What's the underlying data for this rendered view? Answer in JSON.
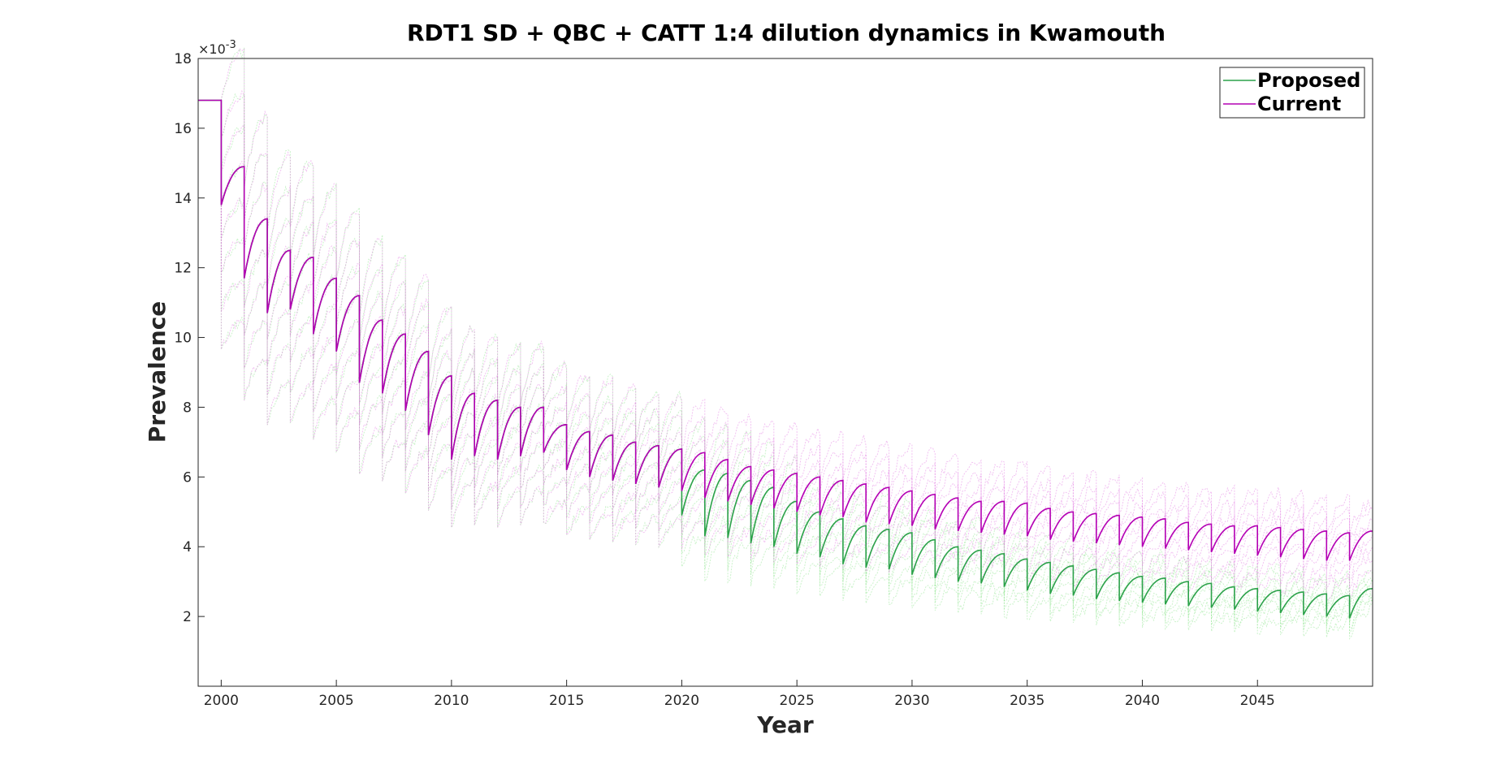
{
  "chart_data": {
    "type": "line",
    "title": "RDT1 SD + QBC + CATT 1:4 dilution dynamics in Kwamouth",
    "xlabel": "Year",
    "ylabel": "Prevalence",
    "y_multiplier_label": "×10",
    "y_multiplier_exponent": "-3",
    "xlim": [
      1999,
      2050
    ],
    "ylim": [
      0,
      18
    ],
    "xticks": [
      "2000",
      "2005",
      "2010",
      "2015",
      "2020",
      "2025",
      "2030",
      "2035",
      "2040",
      "2045"
    ],
    "yticks": [
      "2",
      "4",
      "6",
      "8",
      "10",
      "12",
      "14",
      "16",
      "18"
    ],
    "grid": false,
    "legend": {
      "placement": "top-right",
      "entries": [
        "Proposed",
        "Current"
      ]
    },
    "colors": {
      "Proposed": "#2ca24a",
      "Current": "#b400b4",
      "Proposed_samples": "#8be48b",
      "Current_samples": "#e27be2"
    },
    "screening_years": [
      2000,
      2001,
      2002,
      2003,
      2004,
      2005,
      2006,
      2007,
      2008,
      2009,
      2010,
      2011,
      2012,
      2013,
      2014,
      2015,
      2016,
      2017,
      2018,
      2019,
      2020,
      2021,
      2022,
      2023,
      2024,
      2025,
      2026,
      2027,
      2028,
      2029,
      2030,
      2031,
      2032,
      2033,
      2034,
      2035,
      2036,
      2037,
      2038,
      2039,
      2040,
      2041,
      2042,
      2043,
      2044,
      2045,
      2046,
      2047,
      2048,
      2049
    ],
    "series": [
      {
        "name": "Current",
        "pre_value": 16.8,
        "after_drop": [
          13.8,
          11.7,
          10.7,
          10.8,
          10.1,
          9.6,
          8.7,
          8.4,
          7.9,
          7.2,
          6.5,
          6.6,
          6.5,
          6.6,
          6.7,
          6.2,
          6.0,
          5.9,
          5.8,
          5.7,
          5.6,
          5.4,
          5.3,
          5.2,
          5.1,
          5.0,
          4.9,
          4.85,
          4.7,
          4.65,
          4.6,
          4.5,
          4.45,
          4.4,
          4.35,
          4.3,
          4.2,
          4.15,
          4.1,
          4.05,
          4.0,
          3.95,
          3.9,
          3.85,
          3.8,
          3.75,
          3.7,
          3.65,
          3.6,
          3.6
        ],
        "before_drop": [
          14.9,
          13.4,
          12.5,
          12.3,
          11.7,
          11.2,
          10.5,
          10.1,
          9.6,
          8.9,
          8.4,
          8.2,
          8.0,
          8.0,
          7.5,
          7.3,
          7.2,
          7.0,
          6.9,
          6.8,
          6.7,
          6.5,
          6.3,
          6.2,
          6.1,
          6.0,
          5.9,
          5.8,
          5.7,
          5.6,
          5.5,
          5.4,
          5.3,
          5.3,
          5.25,
          5.1,
          5.0,
          4.95,
          4.9,
          4.85,
          4.8,
          4.7,
          4.65,
          4.6,
          4.6,
          4.55,
          4.5,
          4.45,
          4.4
        ]
      },
      {
        "name": "Proposed",
        "pre_value": 16.8,
        "after_drop": [
          13.8,
          11.7,
          10.7,
          10.8,
          10.1,
          9.6,
          8.7,
          8.4,
          7.9,
          7.2,
          6.5,
          6.6,
          6.5,
          6.6,
          6.7,
          6.2,
          6.0,
          5.9,
          5.8,
          5.7,
          4.9,
          4.3,
          4.25,
          4.1,
          4.0,
          3.8,
          3.7,
          3.5,
          3.4,
          3.35,
          3.2,
          3.1,
          3.0,
          2.95,
          2.85,
          2.75,
          2.65,
          2.6,
          2.5,
          2.45,
          2.4,
          2.35,
          2.3,
          2.25,
          2.2,
          2.15,
          2.1,
          2.05,
          2.0,
          1.95
        ],
        "before_drop": [
          14.9,
          13.4,
          12.5,
          12.3,
          11.7,
          11.2,
          10.5,
          10.1,
          9.6,
          8.9,
          8.4,
          8.2,
          8.0,
          8.0,
          7.5,
          7.3,
          7.2,
          7.0,
          6.9,
          6.8,
          6.2,
          6.1,
          5.9,
          5.7,
          5.3,
          5.0,
          4.8,
          4.6,
          4.5,
          4.4,
          4.2,
          4.0,
          3.9,
          3.8,
          3.65,
          3.55,
          3.45,
          3.35,
          3.25,
          3.15,
          3.1,
          3.0,
          2.95,
          2.85,
          2.8,
          2.75,
          2.7,
          2.65,
          2.6
        ]
      }
    ]
  }
}
